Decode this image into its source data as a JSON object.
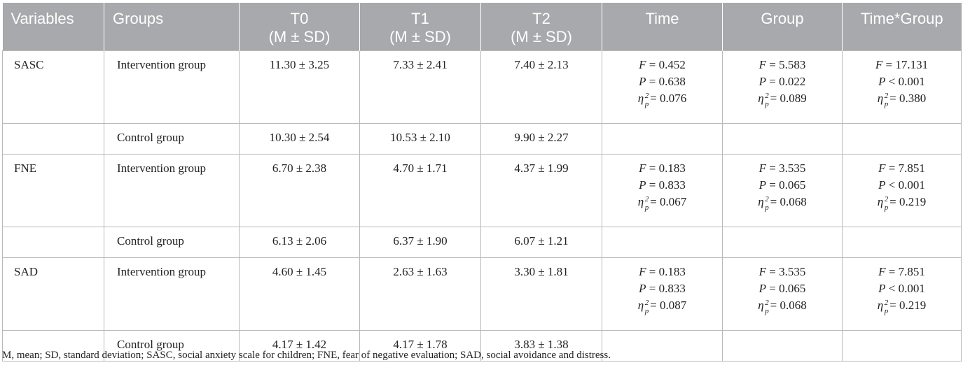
{
  "headers": {
    "variables": "Variables",
    "groups": "Groups",
    "t0": "T0",
    "t0_sub": "(M ± SD)",
    "t1": "T1",
    "t1_sub": "(M ± SD)",
    "t2": "T2",
    "t2_sub": "(M ± SD)",
    "time": "Time",
    "group": "Group",
    "time_group": "Time*Group"
  },
  "rows": [
    {
      "variable": "SASC",
      "intervention": {
        "group": "Intervention group",
        "t0": "11.30 ± 3.25",
        "t1": "7.33 ± 2.41",
        "t2": "7.40 ± 2.13",
        "time": {
          "F": "= 0.452",
          "P": "= 0.638",
          "eta": "= 0.076"
        },
        "grp": {
          "F": "= 5.583",
          "P": "= 0.022",
          "eta": "= 0.089"
        },
        "tg": {
          "F": "= 17.131",
          "P": "< 0.001",
          "eta": "= 0.380"
        }
      },
      "control": {
        "group": "Control group",
        "t0": "10.30 ± 2.54",
        "t1": "10.53 ± 2.10",
        "t2": "9.90 ± 2.27"
      }
    },
    {
      "variable": "FNE",
      "intervention": {
        "group": "Intervention group",
        "t0": "6.70 ± 2.38",
        "t1": "4.70 ± 1.71",
        "t2": "4.37 ± 1.99",
        "time": {
          "F": "= 0.183",
          "P": "= 0.833",
          "eta": "= 0.067"
        },
        "grp": {
          "F": "= 3.535",
          "P": "= 0.065",
          "eta": "= 0.068"
        },
        "tg": {
          "F": "= 7.851",
          "P": "< 0.001",
          "eta": "= 0.219"
        }
      },
      "control": {
        "group": "Control group",
        "t0": "6.13 ± 2.06",
        "t1": "6.37 ± 1.90",
        "t2": "6.07 ± 1.21"
      }
    },
    {
      "variable": "SAD",
      "intervention": {
        "group": "Intervention group",
        "t0": "4.60 ± 1.45",
        "t1": "2.63 ± 1.63",
        "t2": "3.30 ± 1.81",
        "time": {
          "F": "= 0.183",
          "P": "= 0.833",
          "eta": "= 0.087"
        },
        "grp": {
          "F": "= 3.535",
          "P": "= 0.065",
          "eta": "= 0.068"
        },
        "tg": {
          "F": "= 7.851",
          "P": "< 0.001",
          "eta": "= 0.219"
        }
      },
      "control": {
        "group": "Control group",
        "t0": "4.17 ± 1.42",
        "t1": "4.17 ± 1.78",
        "t2": "3.83 ± 1.38"
      }
    }
  ],
  "symbols": {
    "F": "F",
    "P": "P",
    "eta": "η",
    "eta_sup": "2",
    "eta_sub": "p"
  },
  "footnote": "M, mean; SD, standard deviation; SASC, social anxiety scale for children; FNE, fear of negative evaluation; SAD, social avoidance and distress.",
  "colors": {
    "header_bg": "#a7a9ac",
    "header_text": "#ffffff",
    "border": "#b9b9b9"
  }
}
